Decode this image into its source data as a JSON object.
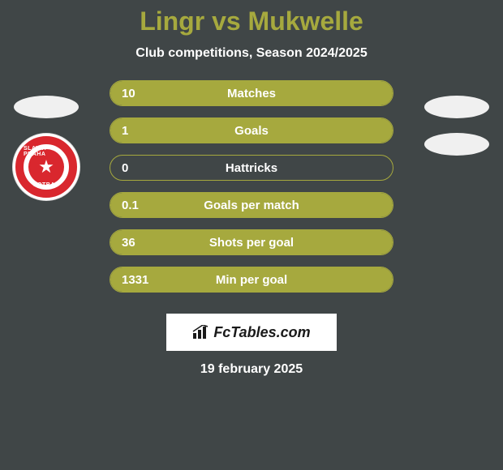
{
  "header": {
    "title": "Lingr vs Mukwelle",
    "subtitle": "Club competitions, Season 2024/2025"
  },
  "players": {
    "left_badge_text_top": "SLAVIA PRAHA",
    "left_badge_text_bottom": "FOTBAL"
  },
  "stats": [
    {
      "label": "Matches",
      "left_value": "10",
      "right_value": "",
      "left_fill_pct": 100,
      "right_fill_pct": 0
    },
    {
      "label": "Goals",
      "left_value": "1",
      "right_value": "",
      "left_fill_pct": 100,
      "right_fill_pct": 0
    },
    {
      "label": "Hattricks",
      "left_value": "0",
      "right_value": "",
      "left_fill_pct": 0,
      "right_fill_pct": 0
    },
    {
      "label": "Goals per match",
      "left_value": "0.1",
      "right_value": "",
      "left_fill_pct": 100,
      "right_fill_pct": 0
    },
    {
      "label": "Shots per goal",
      "left_value": "36",
      "right_value": "",
      "left_fill_pct": 100,
      "right_fill_pct": 0
    },
    {
      "label": "Min per goal",
      "left_value": "1331",
      "right_value": "",
      "left_fill_pct": 100,
      "right_fill_pct": 0
    }
  ],
  "branding": {
    "site_name": "FcTables.com"
  },
  "footer": {
    "date": "19 february 2025"
  },
  "colors": {
    "accent": "#a6a93e",
    "background": "#404647",
    "text": "#ffffff",
    "badge_red": "#d9272e"
  }
}
